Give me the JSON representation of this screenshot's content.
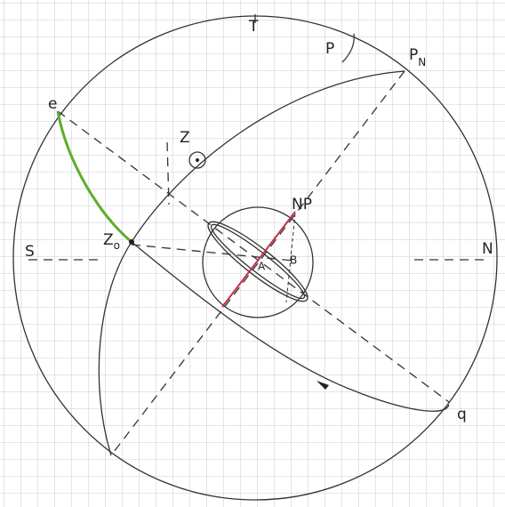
{
  "labels": {
    "t": "T",
    "p": "P",
    "pn": {
      "main": "P",
      "sub": "N"
    },
    "e": "e",
    "z": "Z",
    "zo": {
      "main": "Z",
      "sub": "o"
    },
    "np": "NP",
    "a": "A",
    "b": "B",
    "s": "S",
    "n": "N",
    "q": "q"
  }
}
